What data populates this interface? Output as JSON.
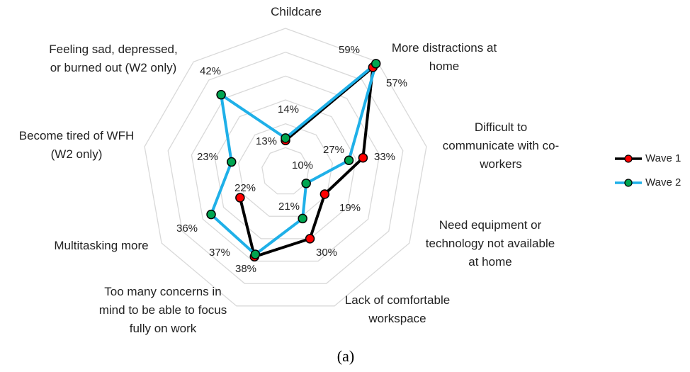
{
  "chart_data": {
    "type": "radar",
    "categories": [
      "Childcare",
      "More distractions at\nhome",
      "Difficult to\ncommunicate with co-\nworkers",
      "Need equipment or\ntechnology not available\nat home",
      "Lack of comfortable\nworkspace",
      "Too many concerns in\nmind to be able to focus\nfully on work",
      "Multitasking more",
      "Become tired of WFH\n(W2 only)",
      "Feeling sad, depressed,\nor burned out (W2 only)"
    ],
    "series": [
      {
        "name": "Wave 1",
        "color": "#000000",
        "marker_color": "#ff0000",
        "closed": false,
        "values": [
          13,
          57,
          33,
          19,
          30,
          38,
          22,
          null,
          null
        ],
        "value_labels": [
          "13%",
          "57%",
          "33%",
          "19%",
          "30%",
          "38%",
          "22%",
          null,
          null
        ]
      },
      {
        "name": "Wave 2",
        "color": "#1fb0e8",
        "marker_color": "#00a651",
        "closed": true,
        "values": [
          14,
          59,
          27,
          10,
          21,
          37,
          36,
          23,
          42
        ],
        "value_labels": [
          "14%",
          "59%",
          "27%",
          "10%",
          "21%",
          "37%",
          "36%",
          "23%",
          "42%"
        ]
      }
    ],
    "ylim": [
      0,
      60
    ],
    "yticks": [
      10,
      20,
      30,
      40,
      50,
      60
    ],
    "grid": true,
    "caption": "(a)"
  }
}
